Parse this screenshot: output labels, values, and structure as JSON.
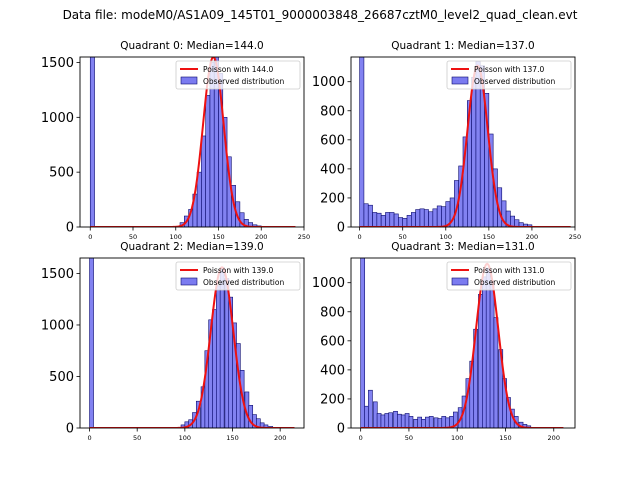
{
  "figure": {
    "title": "Data file: modeM0/AS1A09_145T01_9000003848_26687cztM0_level2_quad_clean.evt"
  },
  "colors": {
    "bar_fill": "#7b7bf0",
    "bar_edge": "#0b0b6e",
    "fit_line": "#ee1111",
    "axis": "#000000",
    "legend_edge": "#cccccc"
  },
  "chart_data": [
    {
      "type": "bar",
      "title": "Quadrant 0: Median=144.0",
      "xlabel": "",
      "ylabel": "",
      "xlim": [
        -12,
        250
      ],
      "ylim": [
        0,
        1550
      ],
      "xticks": [
        0,
        50,
        100,
        150,
        200,
        250
      ],
      "yticks": [
        0,
        500,
        1000,
        1500
      ],
      "legend": {
        "position": "top-right",
        "fit_label": "Poisson with 144.0",
        "hist_label": "Observed distribution"
      },
      "bin_width": 5,
      "bins": [
        {
          "x": 0,
          "v": 1550
        },
        {
          "x": 105,
          "v": 40
        },
        {
          "x": 110,
          "v": 100
        },
        {
          "x": 115,
          "v": 160
        },
        {
          "x": 120,
          "v": 300
        },
        {
          "x": 125,
          "v": 500
        },
        {
          "x": 130,
          "v": 830
        },
        {
          "x": 135,
          "v": 1200
        },
        {
          "x": 140,
          "v": 1500
        },
        {
          "x": 145,
          "v": 1550
        },
        {
          "x": 150,
          "v": 1400
        },
        {
          "x": 155,
          "v": 1000
        },
        {
          "x": 160,
          "v": 640
        },
        {
          "x": 165,
          "v": 380
        },
        {
          "x": 170,
          "v": 230
        },
        {
          "x": 175,
          "v": 130
        },
        {
          "x": 180,
          "v": 70
        },
        {
          "x": 185,
          "v": 40
        },
        {
          "x": 190,
          "v": 20
        },
        {
          "x": 195,
          "v": 10
        }
      ],
      "fit": {
        "lambda": 144.0,
        "peak": 1550,
        "x_range": [
          0,
          240
        ]
      }
    },
    {
      "type": "bar",
      "title": "Quadrant 1: Median=137.0",
      "xlabel": "",
      "ylabel": "",
      "xlim": [
        -10,
        250
      ],
      "ylim": [
        0,
        1170
      ],
      "xticks": [
        0,
        50,
        100,
        150,
        200,
        250
      ],
      "yticks": [
        0,
        200,
        400,
        600,
        800,
        1000
      ],
      "legend": {
        "position": "top-right",
        "fit_label": "Poisson with 137.0",
        "hist_label": "Observed distribution"
      },
      "bin_width": 5,
      "bins": [
        {
          "x": 0,
          "v": 1170
        },
        {
          "x": 5,
          "v": 160
        },
        {
          "x": 10,
          "v": 150
        },
        {
          "x": 15,
          "v": 100
        },
        {
          "x": 20,
          "v": 95
        },
        {
          "x": 25,
          "v": 80
        },
        {
          "x": 30,
          "v": 100
        },
        {
          "x": 35,
          "v": 100
        },
        {
          "x": 40,
          "v": 90
        },
        {
          "x": 45,
          "v": 65
        },
        {
          "x": 50,
          "v": 60
        },
        {
          "x": 55,
          "v": 80
        },
        {
          "x": 60,
          "v": 100
        },
        {
          "x": 65,
          "v": 120
        },
        {
          "x": 70,
          "v": 125
        },
        {
          "x": 75,
          "v": 120
        },
        {
          "x": 80,
          "v": 105
        },
        {
          "x": 85,
          "v": 125
        },
        {
          "x": 90,
          "v": 145
        },
        {
          "x": 95,
          "v": 140
        },
        {
          "x": 100,
          "v": 175
        },
        {
          "x": 105,
          "v": 200
        },
        {
          "x": 110,
          "v": 320
        },
        {
          "x": 115,
          "v": 420
        },
        {
          "x": 120,
          "v": 620
        },
        {
          "x": 125,
          "v": 870
        },
        {
          "x": 130,
          "v": 1030
        },
        {
          "x": 135,
          "v": 1140
        },
        {
          "x": 140,
          "v": 1110
        },
        {
          "x": 145,
          "v": 920
        },
        {
          "x": 150,
          "v": 640
        },
        {
          "x": 155,
          "v": 400
        },
        {
          "x": 160,
          "v": 270
        },
        {
          "x": 165,
          "v": 180
        },
        {
          "x": 170,
          "v": 110
        },
        {
          "x": 175,
          "v": 75
        },
        {
          "x": 180,
          "v": 50
        },
        {
          "x": 185,
          "v": 30
        },
        {
          "x": 190,
          "v": 20
        },
        {
          "x": 195,
          "v": 15
        }
      ],
      "fit": {
        "lambda": 137.0,
        "peak": 1110,
        "x_range": [
          0,
          245
        ]
      }
    },
    {
      "type": "bar",
      "title": "Quadrant 2: Median=139.0",
      "xlabel": "",
      "ylabel": "",
      "xlim": [
        -10,
        225
      ],
      "ylim": [
        0,
        1650
      ],
      "xticks": [
        0,
        50,
        100,
        150,
        200
      ],
      "yticks": [
        0,
        500,
        1000,
        1500
      ],
      "legend": {
        "position": "top-right",
        "fit_label": "Poisson with 139.0",
        "hist_label": "Observed distribution"
      },
      "bin_width": 4.2,
      "bins": [
        {
          "x": 0,
          "v": 1650
        },
        {
          "x": 96,
          "v": 30
        },
        {
          "x": 100,
          "v": 60
        },
        {
          "x": 104,
          "v": 80
        },
        {
          "x": 108,
          "v": 150
        },
        {
          "x": 112,
          "v": 260
        },
        {
          "x": 117,
          "v": 400
        },
        {
          "x": 121,
          "v": 750
        },
        {
          "x": 125,
          "v": 1050
        },
        {
          "x": 129,
          "v": 1150
        },
        {
          "x": 133,
          "v": 1380
        },
        {
          "x": 137,
          "v": 1560
        },
        {
          "x": 142,
          "v": 1450
        },
        {
          "x": 146,
          "v": 1270
        },
        {
          "x": 150,
          "v": 1020
        },
        {
          "x": 154,
          "v": 820
        },
        {
          "x": 158,
          "v": 560
        },
        {
          "x": 163,
          "v": 350
        },
        {
          "x": 167,
          "v": 220
        },
        {
          "x": 171,
          "v": 130
        },
        {
          "x": 175,
          "v": 90
        },
        {
          "x": 179,
          "v": 50
        },
        {
          "x": 183,
          "v": 30
        },
        {
          "x": 188,
          "v": 15
        }
      ],
      "fit": {
        "lambda": 139.0,
        "peak": 1560,
        "x_range": [
          0,
          215
        ]
      }
    },
    {
      "type": "bar",
      "title": "Quadrant 3: Median=131.0",
      "xlabel": "",
      "ylabel": "",
      "xlim": [
        -10,
        222
      ],
      "ylim": [
        0,
        1170
      ],
      "xticks": [
        0,
        50,
        100,
        150,
        200
      ],
      "yticks": [
        0,
        200,
        400,
        600,
        800,
        1000
      ],
      "legend": {
        "position": "top-right",
        "fit_label": "Poisson with 131.0",
        "hist_label": "Observed distribution"
      },
      "bin_width": 4.2,
      "bins": [
        {
          "x": 0,
          "v": 1170
        },
        {
          "x": 4,
          "v": 150
        },
        {
          "x": 8,
          "v": 260
        },
        {
          "x": 13,
          "v": 180
        },
        {
          "x": 17,
          "v": 100
        },
        {
          "x": 21,
          "v": 90
        },
        {
          "x": 25,
          "v": 100
        },
        {
          "x": 29,
          "v": 105
        },
        {
          "x": 34,
          "v": 115
        },
        {
          "x": 38,
          "v": 95
        },
        {
          "x": 42,
          "v": 90
        },
        {
          "x": 46,
          "v": 100
        },
        {
          "x": 50,
          "v": 80
        },
        {
          "x": 55,
          "v": 60
        },
        {
          "x": 59,
          "v": 75
        },
        {
          "x": 63,
          "v": 60
        },
        {
          "x": 67,
          "v": 75
        },
        {
          "x": 71,
          "v": 80
        },
        {
          "x": 76,
          "v": 70
        },
        {
          "x": 80,
          "v": 65
        },
        {
          "x": 84,
          "v": 80
        },
        {
          "x": 88,
          "v": 70
        },
        {
          "x": 92,
          "v": 80
        },
        {
          "x": 96,
          "v": 110
        },
        {
          "x": 101,
          "v": 140
        },
        {
          "x": 105,
          "v": 220
        },
        {
          "x": 109,
          "v": 340
        },
        {
          "x": 113,
          "v": 460
        },
        {
          "x": 117,
          "v": 680
        },
        {
          "x": 122,
          "v": 920
        },
        {
          "x": 126,
          "v": 1040
        },
        {
          "x": 130,
          "v": 1100
        },
        {
          "x": 134,
          "v": 1010
        },
        {
          "x": 138,
          "v": 760
        },
        {
          "x": 143,
          "v": 540
        },
        {
          "x": 147,
          "v": 340
        },
        {
          "x": 151,
          "v": 210
        },
        {
          "x": 155,
          "v": 130
        },
        {
          "x": 159,
          "v": 80
        },
        {
          "x": 164,
          "v": 40
        },
        {
          "x": 168,
          "v": 25
        },
        {
          "x": 172,
          "v": 15
        }
      ],
      "fit": {
        "lambda": 131.0,
        "peak": 1130,
        "x_range": [
          0,
          210
        ]
      }
    }
  ]
}
